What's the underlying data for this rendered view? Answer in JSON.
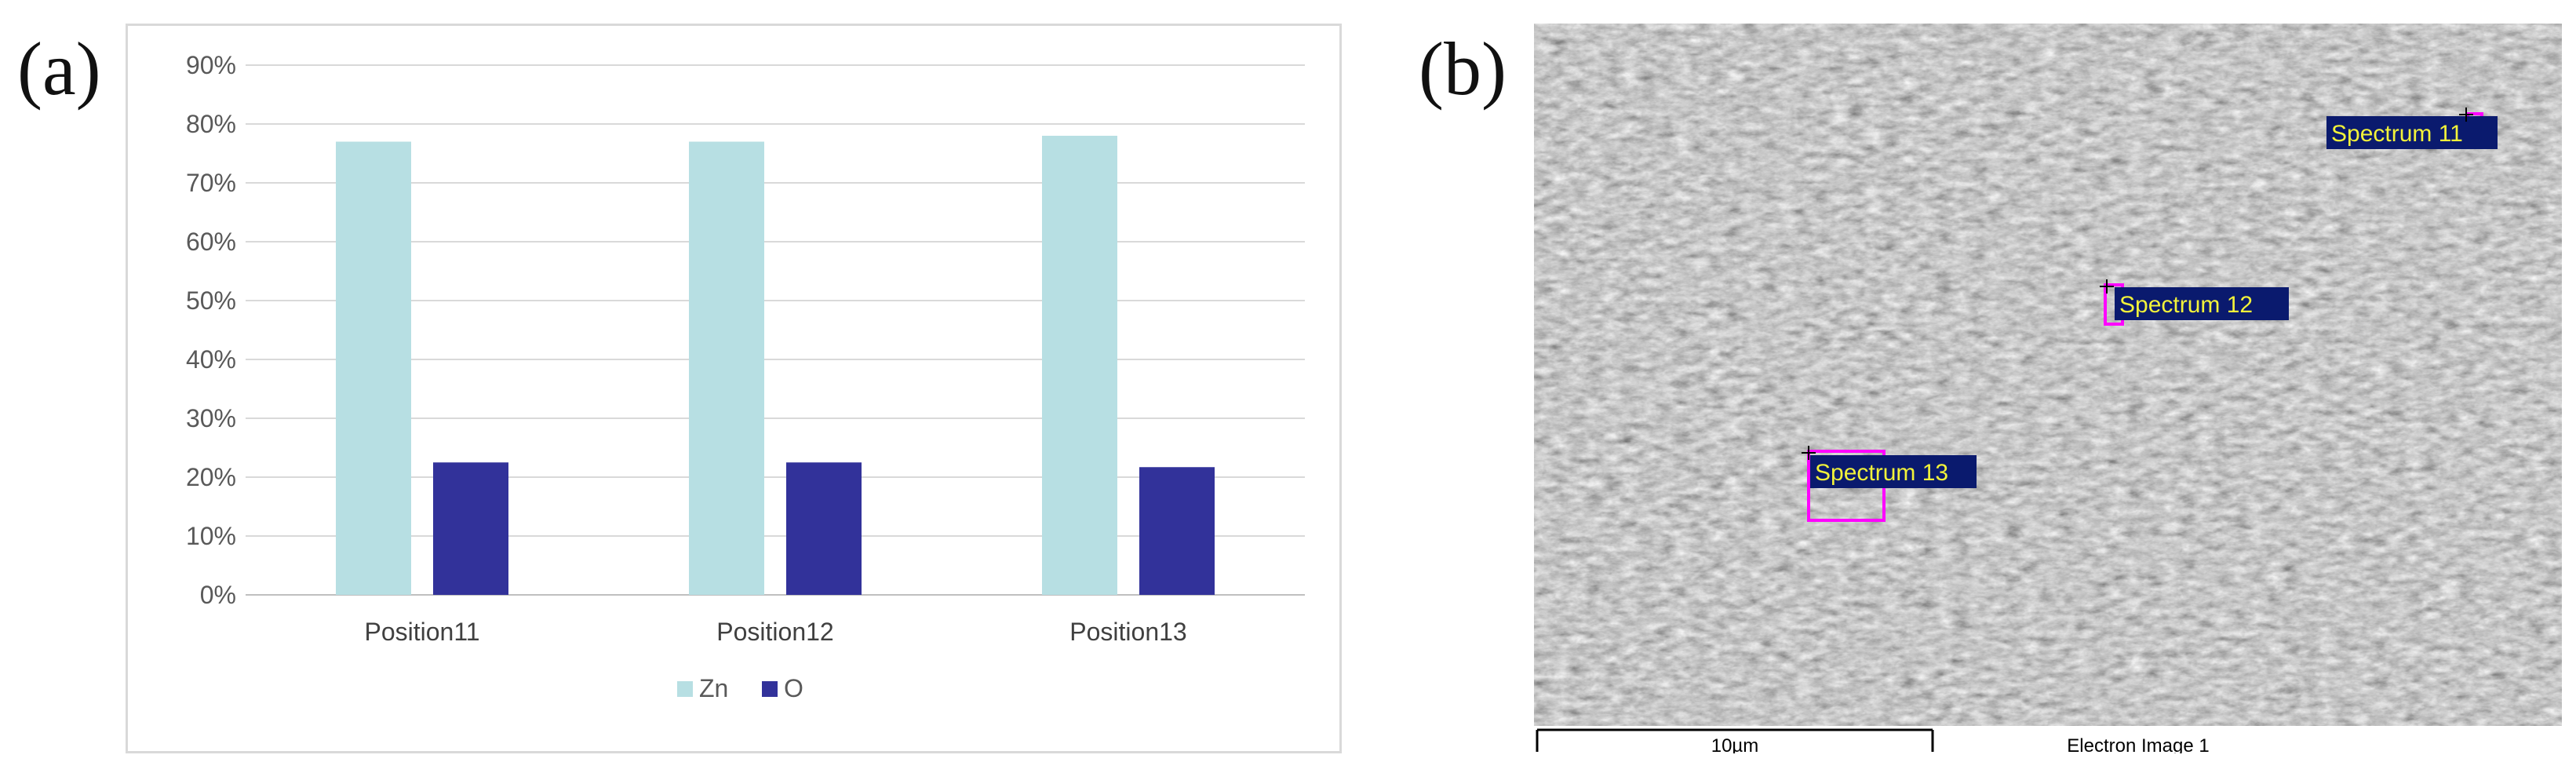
{
  "panels": {
    "a_label": "(a)",
    "b_label": "(b)"
  },
  "chart_data": {
    "type": "bar",
    "categories": [
      "Position11",
      "Position12",
      "Position13"
    ],
    "series": [
      {
        "name": "Zn",
        "values": [
          77,
          77,
          78
        ],
        "color": "#b7dfe3"
      },
      {
        "name": "O",
        "values": [
          22.5,
          22.5,
          21.7
        ],
        "color": "#32329a"
      }
    ],
    "y_ticks": [
      "0%",
      "10%",
      "20%",
      "30%",
      "40%",
      "50%",
      "60%",
      "70%",
      "80%",
      "90%"
    ],
    "ylim": [
      0,
      90
    ],
    "y_unit": "percent",
    "grid": true,
    "legend_position": "bottom-center",
    "title": "",
    "xlabel": "",
    "ylabel": ""
  },
  "sem_image": {
    "markers": [
      {
        "label": "Spectrum 11"
      },
      {
        "label": "Spectrum 12"
      },
      {
        "label": "Spectrum 13"
      }
    ],
    "scale_bar_label": "10µm",
    "image_caption": "Electron Image 1",
    "marker_label_bg": "#0a1a6e",
    "marker_label_text": "#f2f23a",
    "marker_box_color": "#ff00ff"
  }
}
